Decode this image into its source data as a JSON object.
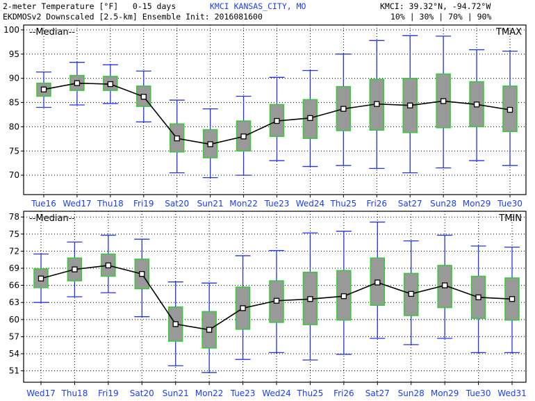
{
  "header": {
    "title_line": "2-meter Temperature [°F]   0-15 days",
    "station": "KMCI KANSAS_CITY, MO",
    "coords": "KMCI: 39.32°N, -94.72°W",
    "model_line": "EKDMOSv2 Downscaled [2.5-km] Ensemble Init: 2016081600",
    "percentiles": "10% | 30% | 70% | 90%"
  },
  "colors": {
    "box": "#999999",
    "box_edge": "#33cc33",
    "whisker": "#2233ee",
    "median_line": "#000000",
    "label": "#1a3cff"
  },
  "chart_data": [
    {
      "type": "box",
      "panel_label": "TMAX",
      "legend": "--Median--",
      "ylim": [
        66,
        101
      ],
      "yticks": [
        70,
        75,
        80,
        85,
        90,
        95,
        100
      ],
      "grid": true,
      "categories": [
        "Tue16",
        "Wed17",
        "Thu18",
        "Fri19",
        "Sat20",
        "Sun21",
        "Mon22",
        "Tue23",
        "Wed24",
        "Thu25",
        "Fri26",
        "Sat27",
        "Sun28",
        "Mon29",
        "Tue30"
      ],
      "p10": [
        84.0,
        84.5,
        84.8,
        81.0,
        70.5,
        69.5,
        70.0,
        73.0,
        71.8,
        72.0,
        71.4,
        70.5,
        71.5,
        73.0,
        72.0
      ],
      "p30": [
        86.3,
        87.5,
        87.5,
        84.2,
        74.8,
        73.6,
        75.0,
        78.0,
        77.6,
        79.2,
        79.3,
        78.8,
        79.8,
        80.0,
        79.0
      ],
      "median": [
        87.7,
        89.0,
        88.8,
        86.2,
        77.6,
        76.4,
        78.0,
        81.2,
        81.8,
        83.7,
        84.7,
        84.4,
        85.3,
        84.6,
        83.5
      ],
      "p70": [
        89.0,
        90.6,
        90.4,
        88.4,
        80.6,
        79.4,
        81.2,
        84.6,
        85.6,
        88.3,
        89.8,
        90.0,
        90.9,
        89.3,
        88.4
      ],
      "p90": [
        91.3,
        93.3,
        92.8,
        91.5,
        85.5,
        83.7,
        86.3,
        90.2,
        91.6,
        95.0,
        97.8,
        98.8,
        98.7,
        95.9,
        95.6
      ]
    },
    {
      "type": "box",
      "panel_label": "TMIN",
      "legend": "--Median--",
      "ylim": [
        49,
        79
      ],
      "yticks": [
        51,
        54,
        57,
        60,
        63,
        66,
        69,
        72,
        75,
        78
      ],
      "grid": true,
      "categories": [
        "Wed17",
        "Thu18",
        "Fri19",
        "Sat20",
        "Sun21",
        "Mon22",
        "Tue23",
        "Wed24",
        "Thu25",
        "Fri26",
        "Sat27",
        "Sun28",
        "Mon29",
        "Tue30",
        "Wed31"
      ],
      "p10": [
        63.0,
        64.0,
        64.7,
        60.5,
        51.9,
        50.7,
        53.0,
        54.2,
        52.9,
        53.9,
        56.7,
        55.6,
        56.7,
        54.2,
        54.2
      ],
      "p30": [
        65.6,
        66.8,
        67.6,
        65.4,
        56.2,
        55.0,
        58.3,
        59.5,
        59.1,
        59.9,
        62.5,
        60.7,
        62.1,
        60.2,
        59.9
      ],
      "median": [
        67.2,
        68.8,
        69.5,
        68.0,
        59.2,
        58.2,
        62.0,
        63.3,
        63.6,
        64.1,
        66.5,
        64.5,
        66.0,
        63.9,
        63.6
      ],
      "p70": [
        68.9,
        70.8,
        71.5,
        70.6,
        62.2,
        61.4,
        65.7,
        66.8,
        68.3,
        68.6,
        70.8,
        68.1,
        69.5,
        67.6,
        67.3
      ],
      "p90": [
        71.5,
        73.6,
        74.8,
        74.1,
        66.6,
        66.4,
        71.2,
        72.1,
        75.2,
        75.5,
        77.1,
        73.8,
        74.8,
        72.9,
        72.7
      ]
    }
  ]
}
